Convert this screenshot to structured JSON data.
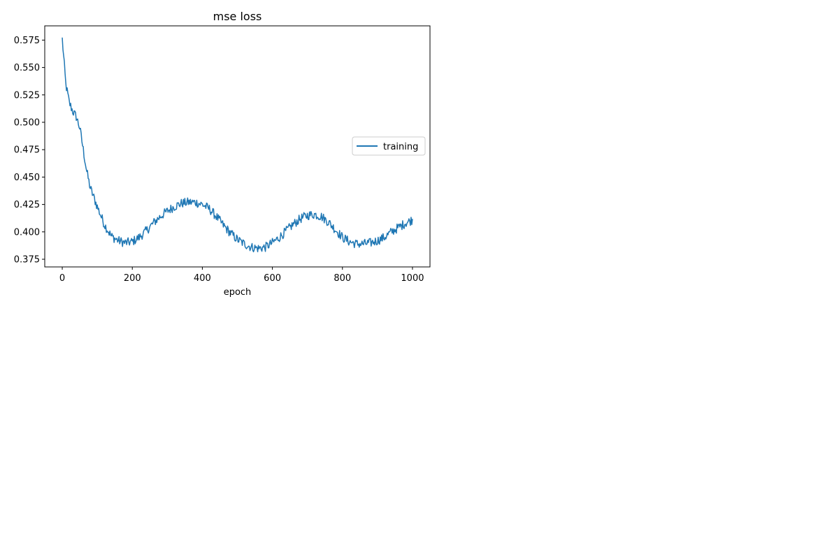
{
  "chart_data": {
    "type": "line",
    "title": "mse loss",
    "xlabel": "epoch",
    "ylabel": "",
    "xlim": [
      -50,
      1050
    ],
    "ylim": [
      0.368,
      0.588
    ],
    "xticks": [
      0,
      200,
      400,
      600,
      800,
      1000
    ],
    "xtick_labels": [
      "0",
      "200",
      "400",
      "600",
      "800",
      "1000"
    ],
    "yticks": [
      0.375,
      0.4,
      0.425,
      0.45,
      0.475,
      0.5,
      0.525,
      0.55,
      0.575
    ],
    "ytick_labels": [
      "0.375",
      "0.400",
      "0.425",
      "0.450",
      "0.475",
      "0.500",
      "0.525",
      "0.550",
      "0.575"
    ],
    "grid": false,
    "legend": {
      "position": "center-right"
    },
    "series": [
      {
        "name": "training",
        "color": "#1f77b4",
        "x": [
          0,
          10,
          20,
          30,
          40,
          50,
          60,
          70,
          80,
          100,
          120,
          140,
          160,
          180,
          200,
          220,
          240,
          260,
          280,
          300,
          320,
          340,
          360,
          380,
          400,
          420,
          440,
          460,
          480,
          500,
          520,
          540,
          560,
          580,
          600,
          620,
          640,
          660,
          680,
          700,
          720,
          740,
          760,
          780,
          800,
          820,
          840,
          860,
          880,
          900,
          920,
          940,
          960,
          980,
          1000
        ],
        "y": [
          0.576,
          0.535,
          0.518,
          0.51,
          0.505,
          0.495,
          0.475,
          0.455,
          0.44,
          0.423,
          0.407,
          0.396,
          0.392,
          0.39,
          0.391,
          0.395,
          0.401,
          0.408,
          0.414,
          0.419,
          0.423,
          0.426,
          0.427,
          0.427,
          0.425,
          0.421,
          0.414,
          0.406,
          0.399,
          0.393,
          0.389,
          0.386,
          0.385,
          0.386,
          0.39,
          0.395,
          0.401,
          0.407,
          0.412,
          0.415,
          0.416,
          0.414,
          0.409,
          0.402,
          0.395,
          0.391,
          0.389,
          0.389,
          0.39,
          0.392,
          0.395,
          0.4,
          0.404,
          0.408,
          0.411
        ]
      }
    ]
  }
}
